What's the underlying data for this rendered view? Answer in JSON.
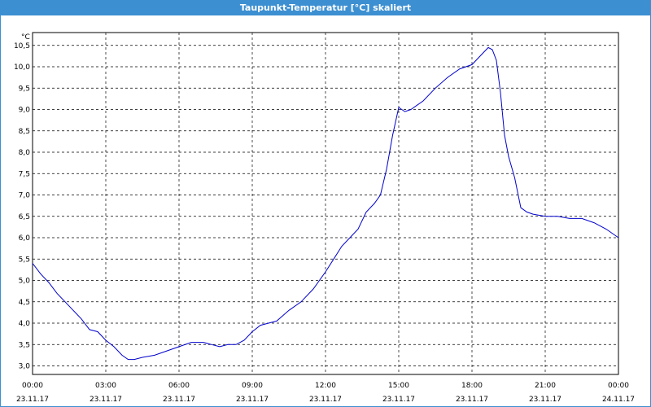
{
  "window": {
    "title": "Taupunkt-Temperatur [°C] skaliert"
  },
  "chart_data": {
    "type": "line",
    "title": "Taupunkt-Temperatur [°C] skaliert",
    "yunit": "°C",
    "xlim": [
      "23.11.17 00:00",
      "24.11.17 00:00"
    ],
    "ylim": [
      2.8,
      10.8
    ],
    "grid": true,
    "line_color": "#0000cc",
    "xticks": [
      {
        "time": "00:00",
        "date": "23.11.17"
      },
      {
        "time": "03:00",
        "date": "23.11.17"
      },
      {
        "time": "06:00",
        "date": "23.11.17"
      },
      {
        "time": "09:00",
        "date": "23.11.17"
      },
      {
        "time": "12:00",
        "date": "23.11.17"
      },
      {
        "time": "15:00",
        "date": "23.11.17"
      },
      {
        "time": "18:00",
        "date": "23.11.17"
      },
      {
        "time": "21:00",
        "date": "23.11.17"
      },
      {
        "time": "00:00",
        "date": "24.11.17"
      }
    ],
    "yticks": [
      "3,0",
      "3,5",
      "4,0",
      "4,5",
      "5,0",
      "5,5",
      "6,0",
      "6,5",
      "7,0",
      "7,5",
      "8,0",
      "8,5",
      "9,0",
      "9,5",
      "10,0",
      "10,5"
    ],
    "series": [
      {
        "x": [
          "23.11.17 00:00",
          "23.11.17 00:20",
          "23.11.17 00:40",
          "23.11.17 01:00",
          "23.11.17 01:20",
          "23.11.17 01:40",
          "23.11.17 02:00",
          "23.11.17 02:20",
          "23.11.17 02:40",
          "23.11.17 03:00",
          "23.11.17 03:20",
          "23.11.17 03:40",
          "23.11.17 03:55",
          "23.11.17 04:10",
          "23.11.17 04:30",
          "23.11.17 05:00",
          "23.11.17 05:30",
          "23.11.17 06:00",
          "23.11.17 06:30",
          "23.11.17 07:00",
          "23.11.17 07:20",
          "23.11.17 07:40",
          "23.11.17 08:00",
          "23.11.17 08:20",
          "23.11.17 08:40",
          "23.11.17 09:00",
          "23.11.17 09:20",
          "23.11.17 09:40",
          "23.11.17 10:00",
          "23.11.17 10:30",
          "23.11.17 11:00",
          "23.11.17 11:30",
          "23.11.17 12:00",
          "23.11.17 12:20",
          "23.11.17 12:40",
          "23.11.17 13:00",
          "23.11.17 13:20",
          "23.11.17 13:40",
          "23.11.17 14:00",
          "23.11.17 14:15",
          "23.11.17 14:30",
          "23.11.17 14:45",
          "23.11.17 15:00",
          "23.11.17 15:15",
          "23.11.17 15:30",
          "23.11.17 16:00",
          "23.11.17 16:30",
          "23.11.17 17:00",
          "23.11.17 17:30",
          "23.11.17 18:00",
          "23.11.17 18:20",
          "23.11.17 18:40",
          "23.11.17 18:50",
          "23.11.17 19:00",
          "23.11.17 19:10",
          "23.11.17 19:20",
          "23.11.17 19:30",
          "23.11.17 19:45",
          "23.11.17 20:00",
          "23.11.17 20:15",
          "23.11.17 20:30",
          "23.11.17 21:00",
          "23.11.17 21:30",
          "23.11.17 22:00",
          "23.11.17 22:30",
          "23.11.17 23:00",
          "23.11.17 23:30",
          "24.11.17 00:00"
        ],
        "y": [
          5.4,
          5.15,
          4.95,
          4.7,
          4.5,
          4.3,
          4.1,
          3.85,
          3.8,
          3.6,
          3.45,
          3.25,
          3.15,
          3.15,
          3.2,
          3.25,
          3.35,
          3.45,
          3.55,
          3.55,
          3.5,
          3.45,
          3.5,
          3.5,
          3.6,
          3.8,
          3.95,
          4.0,
          4.05,
          4.3,
          4.5,
          4.8,
          5.2,
          5.5,
          5.8,
          6.0,
          6.2,
          6.6,
          6.8,
          7.0,
          7.6,
          8.4,
          9.05,
          8.95,
          9.0,
          9.2,
          9.5,
          9.75,
          9.95,
          10.05,
          10.25,
          10.45,
          10.4,
          10.15,
          9.4,
          8.4,
          7.9,
          7.4,
          6.7,
          6.6,
          6.55,
          6.5,
          6.5,
          6.45,
          6.45,
          6.35,
          6.2,
          6.0
        ]
      }
    ]
  }
}
